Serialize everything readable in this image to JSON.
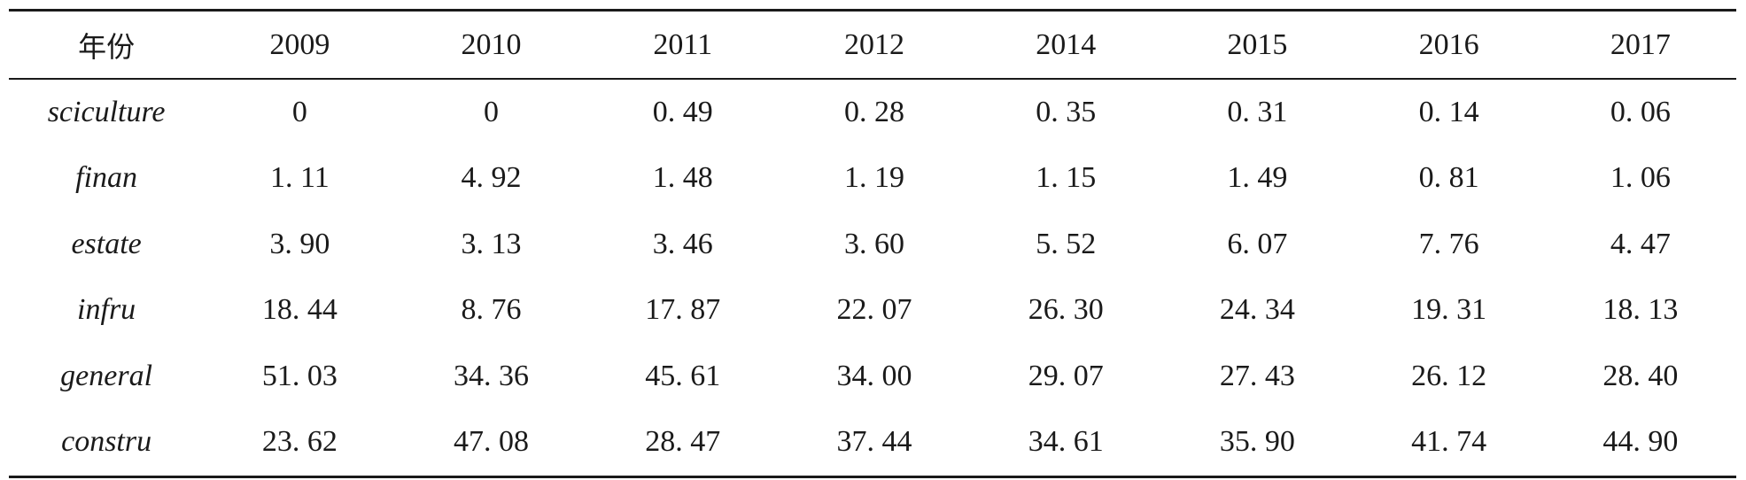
{
  "table": {
    "header_label": "年份",
    "years": [
      "2009",
      "2010",
      "2011",
      "2012",
      "2014",
      "2015",
      "2016",
      "2017"
    ],
    "rows": [
      {
        "label": "sciculture",
        "values": [
          "0",
          "0",
          "0. 49",
          "0. 28",
          "0. 35",
          "0. 31",
          "0. 14",
          "0. 06"
        ]
      },
      {
        "label": "finan",
        "values": [
          "1. 11",
          "4. 92",
          "1. 48",
          "1. 19",
          "1. 15",
          "1. 49",
          "0. 81",
          "1. 06"
        ]
      },
      {
        "label": "estate",
        "values": [
          "3. 90",
          "3. 13",
          "3. 46",
          "3. 60",
          "5. 52",
          "6. 07",
          "7. 76",
          "4. 47"
        ]
      },
      {
        "label": "infru",
        "values": [
          "18. 44",
          "8. 76",
          "17. 87",
          "22. 07",
          "26. 30",
          "24. 34",
          "19. 31",
          "18. 13"
        ]
      },
      {
        "label": "general",
        "values": [
          "51. 03",
          "34. 36",
          "45. 61",
          "34. 00",
          "29. 07",
          "27. 43",
          "26. 12",
          "28. 40"
        ]
      },
      {
        "label": "constru",
        "values": [
          "23. 62",
          "47. 08",
          "28. 47",
          "37. 44",
          "34. 61",
          "35. 90",
          "41. 74",
          "44. 90"
        ]
      }
    ]
  }
}
